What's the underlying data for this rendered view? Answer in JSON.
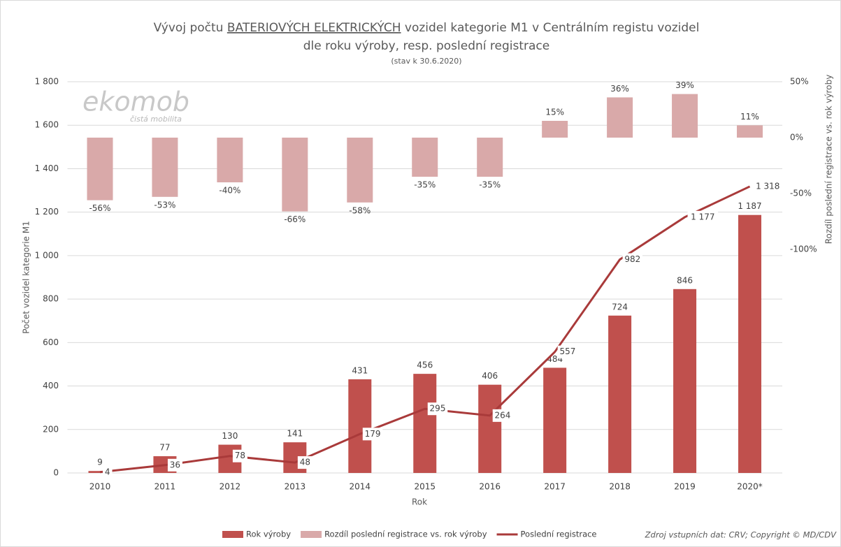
{
  "chart_data": {
    "type": "combo",
    "title": [
      "Vývoj počtu",
      "BATERIOVÝCH ELEKTRICKÝCH",
      "vozidel kategorie M1 v Centrálním registu vozidel"
    ],
    "title_line2": "dle roku výroby, resp. poslední registrace",
    "subtitle": "(stav k 30.6.2020)",
    "logo": "ekomob",
    "logo_tagline": "čistá mobilita",
    "x_label": "Rok",
    "y_label": "Počet vozidel kategorie M1",
    "y2_label": "Rozdíl poslední registrace vs. rok výroby",
    "source": "Zdroj vstupních dat: CRV; Copyright © MD/CDV",
    "categories": [
      "2010",
      "2011",
      "2012",
      "2013",
      "2014",
      "2015",
      "2016",
      "2017",
      "2018",
      "2019",
      "2020*"
    ],
    "ylim": [
      0,
      1800
    ],
    "yticks": [
      0,
      200,
      400,
      600,
      800,
      {
        "value": 1000,
        "label": "1 000"
      },
      {
        "value": 1200,
        "label": "1 200"
      },
      {
        "value": 1400,
        "label": "1 400"
      },
      {
        "value": 1600,
        "label": "1 600"
      },
      {
        "value": 1800,
        "label": "1 800"
      }
    ],
    "y2lim": [
      -300,
      50
    ],
    "y2ticks": [
      {
        "value": -100,
        "label": "-100%"
      },
      {
        "value": -50,
        "label": "-50%"
      },
      {
        "value": 0,
        "label": "0%"
      },
      {
        "value": 50,
        "label": "50%"
      }
    ],
    "grid": true,
    "series": [
      {
        "name": "Rok výroby",
        "kind": "bar",
        "color": "#c0504d",
        "values": [
          9,
          77,
          130,
          141,
          431,
          456,
          406,
          484,
          724,
          846,
          1187
        ],
        "value_labels": [
          "9",
          "77",
          "130",
          "141",
          "431",
          "456",
          "406",
          "484",
          "724",
          "846",
          "1 187"
        ]
      },
      {
        "name": "Rozdíl poslední registrace vs. rok výroby",
        "kind": "bar",
        "axis": "y2",
        "color": "#d9a9a9",
        "values": [
          -56,
          -53,
          -40,
          -66,
          -58,
          -35,
          -35,
          15,
          36,
          39,
          11
        ],
        "value_labels": [
          "-56%",
          "-53%",
          "-40%",
          "-66%",
          "-58%",
          "-35%",
          "-35%",
          "15%",
          "36%",
          "39%",
          "11%"
        ]
      },
      {
        "name": "Poslední registrace",
        "kind": "line",
        "color": "#a93a3a",
        "values": [
          4,
          36,
          78,
          48,
          179,
          295,
          264,
          557,
          982,
          1177,
          1318
        ],
        "value_labels": [
          "4",
          "36",
          "78",
          "48",
          "179",
          "295",
          "264",
          "557",
          "982",
          "1 177",
          "1 318"
        ]
      }
    ]
  }
}
